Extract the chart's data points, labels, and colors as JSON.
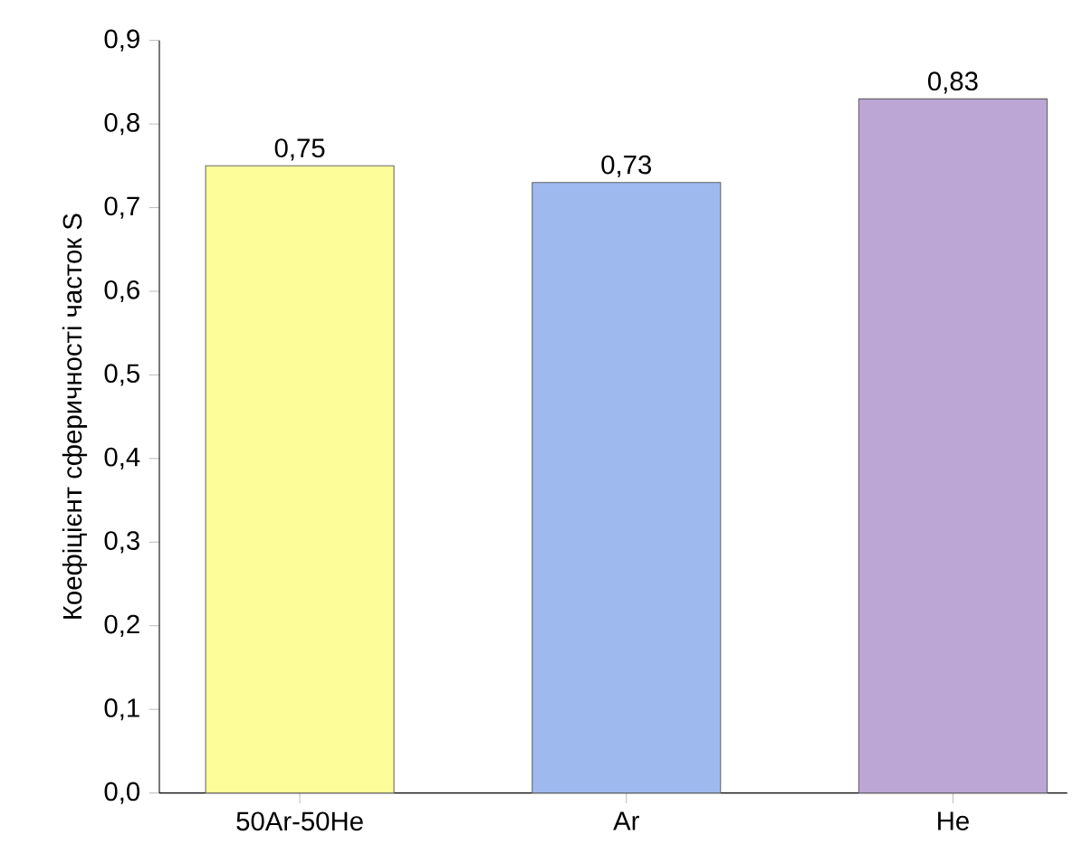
{
  "chart_data": {
    "type": "bar",
    "ylabel": "Коефіцієнт сферичності часток S",
    "categories": [
      "50Ar-50He",
      "Ar",
      "He"
    ],
    "values": [
      0.75,
      0.73,
      0.83
    ],
    "value_labels": [
      "0,75",
      "0,73",
      "0,83"
    ],
    "colors": [
      "#fdfd9a",
      "#9db9ee",
      "#bba6d6"
    ],
    "ylim": [
      0,
      0.9
    ],
    "yticks": [
      {
        "value": 0,
        "label": "0,0"
      },
      {
        "value": 0.1,
        "label": "0,1"
      },
      {
        "value": 0.2,
        "label": "0,2"
      },
      {
        "value": 0.3,
        "label": "0,3"
      },
      {
        "value": 0.4,
        "label": "0,4"
      },
      {
        "value": 0.5,
        "label": "0,5"
      },
      {
        "value": 0.6,
        "label": "0,6"
      },
      {
        "value": 0.7,
        "label": "0,7"
      },
      {
        "value": 0.8,
        "label": "0,8"
      },
      {
        "value": 0.9,
        "label": "0,9"
      }
    ],
    "grid": false
  }
}
